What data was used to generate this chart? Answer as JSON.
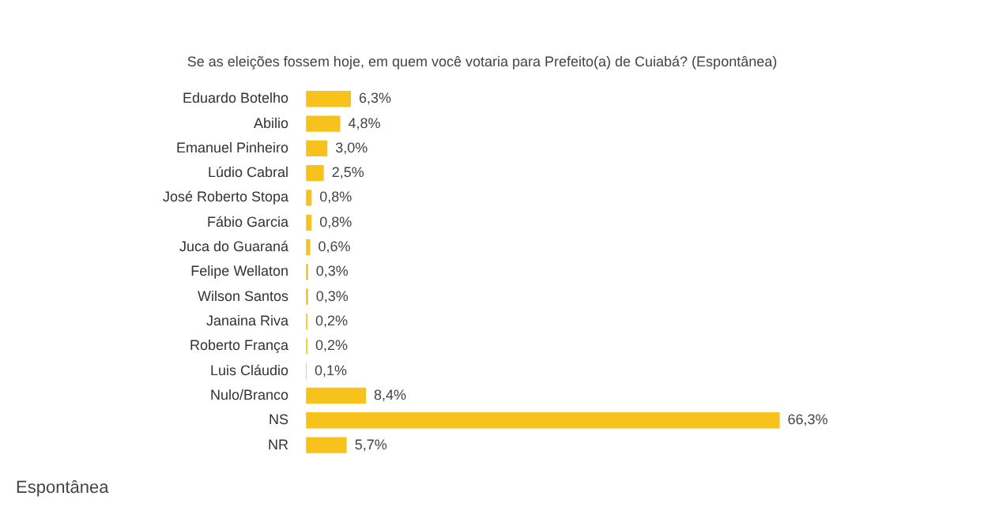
{
  "chart_data": {
    "type": "bar",
    "orientation": "horizontal",
    "title": "Se as eleições fossem hoje, em quem você votaria para Prefeito(a) de Cuiabá? (Espontânea)",
    "categories": [
      "Eduardo Botelho",
      "Abilio",
      "Emanuel Pinheiro",
      "Lúdio Cabral",
      "José Roberto Stopa",
      "Fábio Garcia",
      "Juca do Guaraná",
      "Felipe Wellaton",
      "Wilson Santos",
      "Janaina Riva",
      "Roberto França",
      "Luis Cláudio",
      "Nulo/Branco",
      "NS",
      "NR"
    ],
    "values": [
      6.3,
      4.8,
      3.0,
      2.5,
      0.8,
      0.8,
      0.6,
      0.3,
      0.3,
      0.2,
      0.2,
      0.1,
      8.4,
      66.3,
      5.7
    ],
    "value_labels": [
      "6,3%",
      "4,8%",
      "3,0%",
      "2,5%",
      "0,8%",
      "0,8%",
      "0,6%",
      "0,3%",
      "0,3%",
      "0,2%",
      "0,2%",
      "0,1%",
      "8,4%",
      "66,3%",
      "5,7%"
    ],
    "color": "#f8c21c",
    "annotations": [
      "Espontânea"
    ]
  }
}
